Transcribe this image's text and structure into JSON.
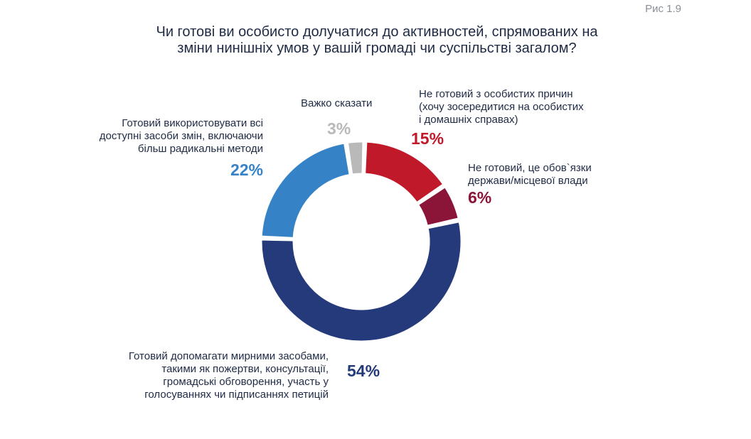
{
  "figure_label": "Рис 1.9",
  "chart_data": {
    "type": "pie",
    "title_lines": [
      "Чи готові ви особисто долучатися до активностей, спрямованих на",
      "зміни нинішніх умов у вашій громаді чи суспільстві загалом?"
    ],
    "slices": [
      {
        "label_lines": [
          "Не готовий з особистих причин",
          "(хочу зосередитися на особистих",
          "і домашніх справах)"
        ],
        "value": 15,
        "value_label": "15%",
        "color": "#c0192a"
      },
      {
        "label_lines": [
          "Не готовий, це обов`язки",
          "держави/місцевої влади"
        ],
        "value": 6,
        "value_label": "6%",
        "color": "#8b1538"
      },
      {
        "label_lines": [
          "Готовий допомагати мирними засобами,",
          "такими як пожертви, консультації,",
          "громадські обговорення, участь у",
          "голосуваннях чи підписаннях петицій"
        ],
        "value": 54,
        "value_label": "54%",
        "color": "#253a7a"
      },
      {
        "label_lines": [
          "Готовий використовувати всі",
          "доступні засоби змін, включаючи",
          "більш радикальні методи"
        ],
        "value": 22,
        "value_label": "22%",
        "color": "#3583c6"
      },
      {
        "label_lines": [
          "Важко сказати"
        ],
        "value": 3,
        "value_label": "3%",
        "color": "#b9b9b9"
      }
    ]
  }
}
